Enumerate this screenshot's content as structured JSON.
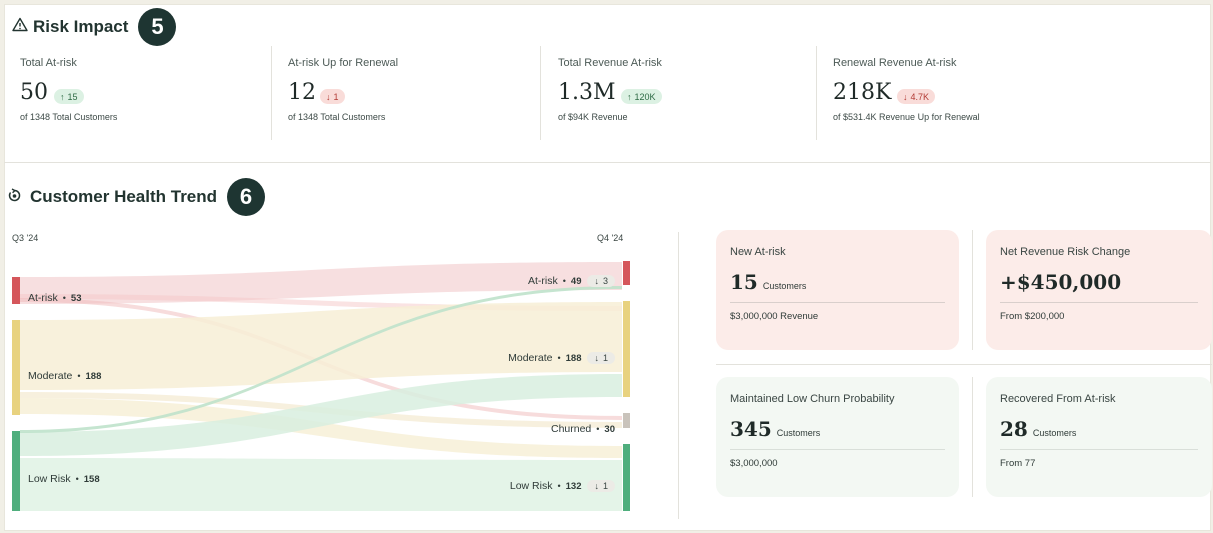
{
  "risk_impact": {
    "title": "Risk Impact",
    "step": "5",
    "kpis": [
      {
        "label": "Total At-risk",
        "value": "50",
        "delta": "15",
        "direction": "up",
        "sub": "of 1348 Total Customers"
      },
      {
        "label": "At-risk Up for Renewal",
        "value": "12",
        "delta": "1",
        "direction": "down",
        "sub": "of 1348 Total Customers"
      },
      {
        "label": "Total Revenue At-risk",
        "value": "1.3M",
        "delta": "120K",
        "direction": "up",
        "sub": "of $94K Revenue"
      },
      {
        "label": "Renewal Revenue At-risk",
        "value": "218K",
        "delta": "4.7K",
        "direction": "down",
        "sub": "of $531.4K Revenue Up for Renewal"
      }
    ]
  },
  "health_trend": {
    "title": "Customer Health Trend",
    "step": "6",
    "left_period": "Q3 '24",
    "right_period": "Q4 '24",
    "left_nodes": [
      {
        "label": "At-risk",
        "count": "53",
        "color": "#d5565b"
      },
      {
        "label": "Moderate",
        "count": "188",
        "color": "#e8d27f"
      },
      {
        "label": "Low Risk",
        "count": "158",
        "color": "#4fae7d"
      }
    ],
    "right_nodes": [
      {
        "label": "At-risk",
        "count": "49",
        "delta": "3",
        "color": "#d5565b"
      },
      {
        "label": "Moderate",
        "count": "188",
        "delta": "1",
        "color": "#e8d27f"
      },
      {
        "label": "Churned",
        "count": "30",
        "color": "#c9c3bb"
      },
      {
        "label": "Low Risk",
        "count": "132",
        "delta": "1",
        "color": "#4fae7d"
      }
    ],
    "cards": [
      {
        "title": "New At-risk",
        "value": "15",
        "unit": "Customers",
        "foot": "$3,000,000 Revenue",
        "tone": "pink"
      },
      {
        "title": "Net Revenue Risk Change",
        "value": "+$450,000",
        "unit": "",
        "foot": "From $200,000",
        "tone": "pink"
      },
      {
        "title": "Maintained Low Churn Probability",
        "value": "345",
        "unit": "Customers",
        "foot": "$3,000,000",
        "tone": "green"
      },
      {
        "title": "Recovered From At-risk",
        "value": "28",
        "unit": "Customers",
        "foot": "From 77",
        "tone": "green"
      }
    ]
  },
  "icons": {
    "risk": "warning-triangle-icon",
    "trend": "health-trend-icon",
    "up": "arrow-up-icon",
    "down": "arrow-down-icon"
  }
}
